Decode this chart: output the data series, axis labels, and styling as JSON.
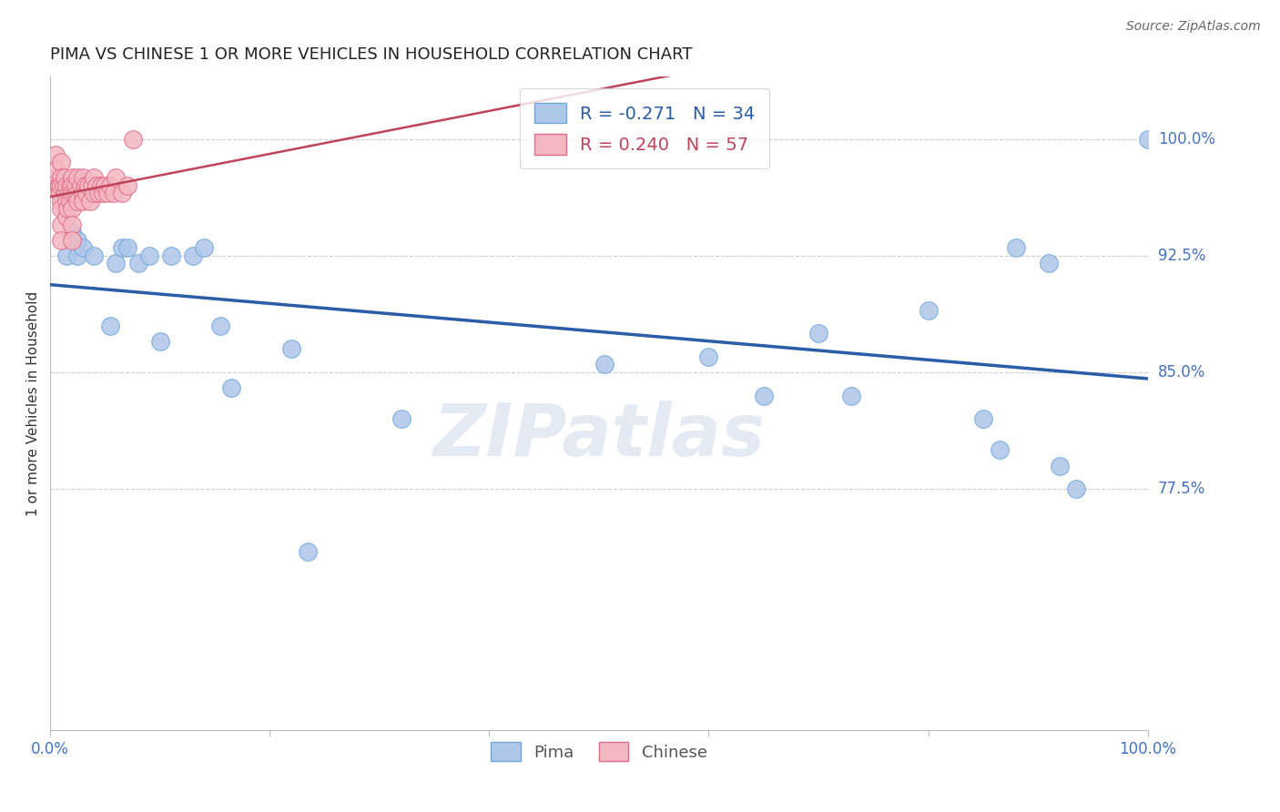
{
  "title": "PIMA VS CHINESE 1 OR MORE VEHICLES IN HOUSEHOLD CORRELATION CHART",
  "source": "Source: ZipAtlas.com",
  "ylabel": "1 or more Vehicles in Household",
  "watermark": "ZIPatlas",
  "legend_pima_R": -0.271,
  "legend_pima_N": 34,
  "legend_chinese_R": 0.24,
  "legend_chinese_N": 57,
  "ytick_labels": [
    "100.0%",
    "92.5%",
    "85.0%",
    "77.5%"
  ],
  "ytick_values": [
    1.0,
    0.925,
    0.85,
    0.775
  ],
  "xlim": [
    0.0,
    1.0
  ],
  "ylim": [
    0.62,
    1.04
  ],
  "pima_color": "#aec6e8",
  "pima_edge": "#6fa8dc",
  "chinese_color": "#f4b8c1",
  "chinese_edge": "#e06c8a",
  "trendline_pima_color": "#2a5caa",
  "trendline_chinese_color": "#c0435a",
  "pima_x": [
    0.015,
    0.02,
    0.025,
    0.025,
    0.03,
    0.04,
    0.055,
    0.06,
    0.065,
    0.07,
    0.08,
    0.09,
    0.1,
    0.11,
    0.13,
    0.14,
    0.155,
    0.165,
    0.22,
    0.235,
    0.32,
    0.505,
    0.6,
    0.65,
    0.7,
    0.73,
    0.8,
    0.85,
    0.865,
    0.88,
    0.91,
    0.92,
    0.935,
    1.0
  ],
  "pima_y": [
    0.925,
    0.94,
    0.935,
    0.925,
    0.93,
    0.925,
    0.88,
    0.92,
    0.93,
    0.93,
    0.92,
    0.925,
    0.87,
    0.925,
    0.925,
    0.93,
    0.88,
    0.84,
    0.865,
    0.735,
    0.82,
    0.855,
    0.86,
    0.835,
    0.875,
    0.835,
    0.89,
    0.82,
    0.8,
    0.93,
    0.92,
    0.79,
    0.775,
    1.0
  ],
  "chinese_x": [
    0.005,
    0.005,
    0.006,
    0.007,
    0.008,
    0.009,
    0.01,
    0.01,
    0.01,
    0.01,
    0.01,
    0.01,
    0.01,
    0.012,
    0.013,
    0.014,
    0.015,
    0.015,
    0.015,
    0.016,
    0.017,
    0.018,
    0.018,
    0.02,
    0.02,
    0.02,
    0.02,
    0.02,
    0.02,
    0.022,
    0.023,
    0.025,
    0.025,
    0.025,
    0.028,
    0.03,
    0.03,
    0.03,
    0.032,
    0.033,
    0.035,
    0.036,
    0.038,
    0.04,
    0.04,
    0.042,
    0.044,
    0.046,
    0.048,
    0.05,
    0.052,
    0.055,
    0.058,
    0.06,
    0.065,
    0.07,
    0.075
  ],
  "chinese_y": [
    0.975,
    0.99,
    0.98,
    0.97,
    0.97,
    0.965,
    0.985,
    0.975,
    0.97,
    0.96,
    0.955,
    0.945,
    0.935,
    0.97,
    0.975,
    0.965,
    0.97,
    0.96,
    0.95,
    0.955,
    0.965,
    0.97,
    0.96,
    0.975,
    0.97,
    0.965,
    0.955,
    0.945,
    0.935,
    0.965,
    0.97,
    0.975,
    0.965,
    0.96,
    0.97,
    0.975,
    0.965,
    0.96,
    0.97,
    0.965,
    0.97,
    0.96,
    0.97,
    0.975,
    0.965,
    0.97,
    0.965,
    0.97,
    0.965,
    0.97,
    0.965,
    0.97,
    0.965,
    0.975,
    0.965,
    0.97,
    1.0
  ]
}
